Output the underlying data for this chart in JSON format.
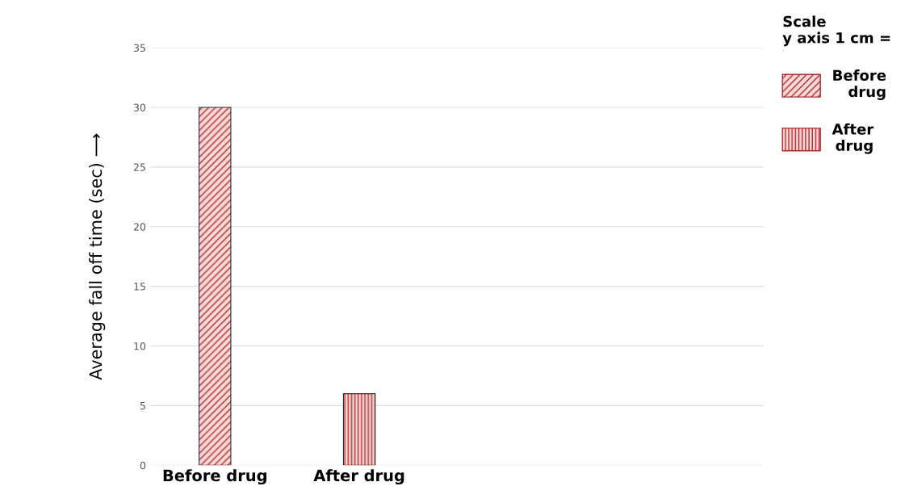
{
  "chart_data": {
    "type": "bar",
    "ylabel": "Average fall off time (sec) ⟶",
    "legend_title": "Scale\ny axis 1 cm =",
    "categories": [
      "Before drug",
      "After drug",
      null,
      null
    ],
    "series": [
      {
        "name": "Before drug",
        "color": "#b22a2a",
        "values": [
          30,
          null,
          null,
          null
        ]
      },
      {
        "name": "After drug",
        "color": "#b22a2a",
        "values": [
          null,
          6,
          null,
          null
        ]
      }
    ],
    "ylim": [
      0,
      35
    ],
    "yticks": [
      0,
      5,
      10,
      15,
      20,
      25,
      30,
      35
    ],
    "grid": "y",
    "legend": "top right"
  }
}
